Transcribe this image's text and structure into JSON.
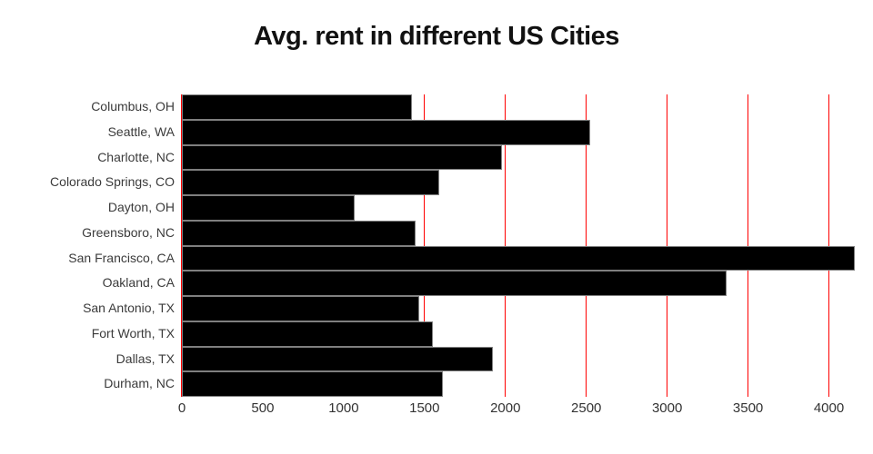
{
  "title": "Avg. rent in different US Cities",
  "chart_data": {
    "type": "bar",
    "orientation": "horizontal",
    "title": "Avg. rent in different US Cities",
    "xlabel": "",
    "ylabel": "",
    "categories": [
      "Columbus, OH",
      "Seattle, WA",
      "Charlotte, NC",
      "Colorado Springs, CO",
      "Dayton, OH",
      "Greensboro, NC",
      "San Francisco, CA",
      "Oakland, CA",
      "San Antonio, TX",
      "Fort Worth, TX",
      "Dallas, TX",
      "Durham, NC"
    ],
    "values": [
      1420,
      2525,
      1980,
      1590,
      1070,
      1445,
      4160,
      3370,
      1470,
      1550,
      1925,
      1615
    ],
    "xlim": [
      0,
      4160
    ],
    "xticks": [
      0,
      500,
      1000,
      1500,
      2000,
      2500,
      3000,
      3500,
      4000
    ],
    "grid": true,
    "legend_position": "none",
    "colors": {
      "bar_fill": "#000000",
      "bar_border": "#7f7f7f",
      "gridline": "#ff0000",
      "background": "#ffffff",
      "title_text": "#111111",
      "axis_text": "#3b3b3b"
    }
  }
}
